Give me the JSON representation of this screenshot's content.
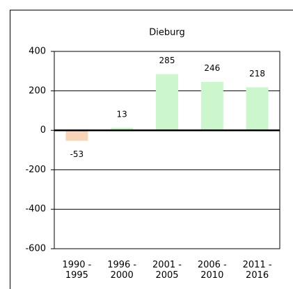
{
  "chart_data": {
    "type": "bar",
    "title": "Dieburg",
    "categories": [
      "1990 - 1995",
      "1996 - 2000",
      "2001 - 2005",
      "2006 - 2010",
      "2011 - 2016"
    ],
    "values": [
      -53,
      13,
      285,
      246,
      218
    ],
    "colors": [
      "#f9d5b8",
      "#ccf7cc",
      "#ccf7cc",
      "#ccf7cc",
      "#ccf7cc"
    ],
    "ylim": [
      -600,
      400
    ],
    "yticks": [
      -600,
      -400,
      -200,
      0,
      200,
      400
    ],
    "grid": true
  }
}
